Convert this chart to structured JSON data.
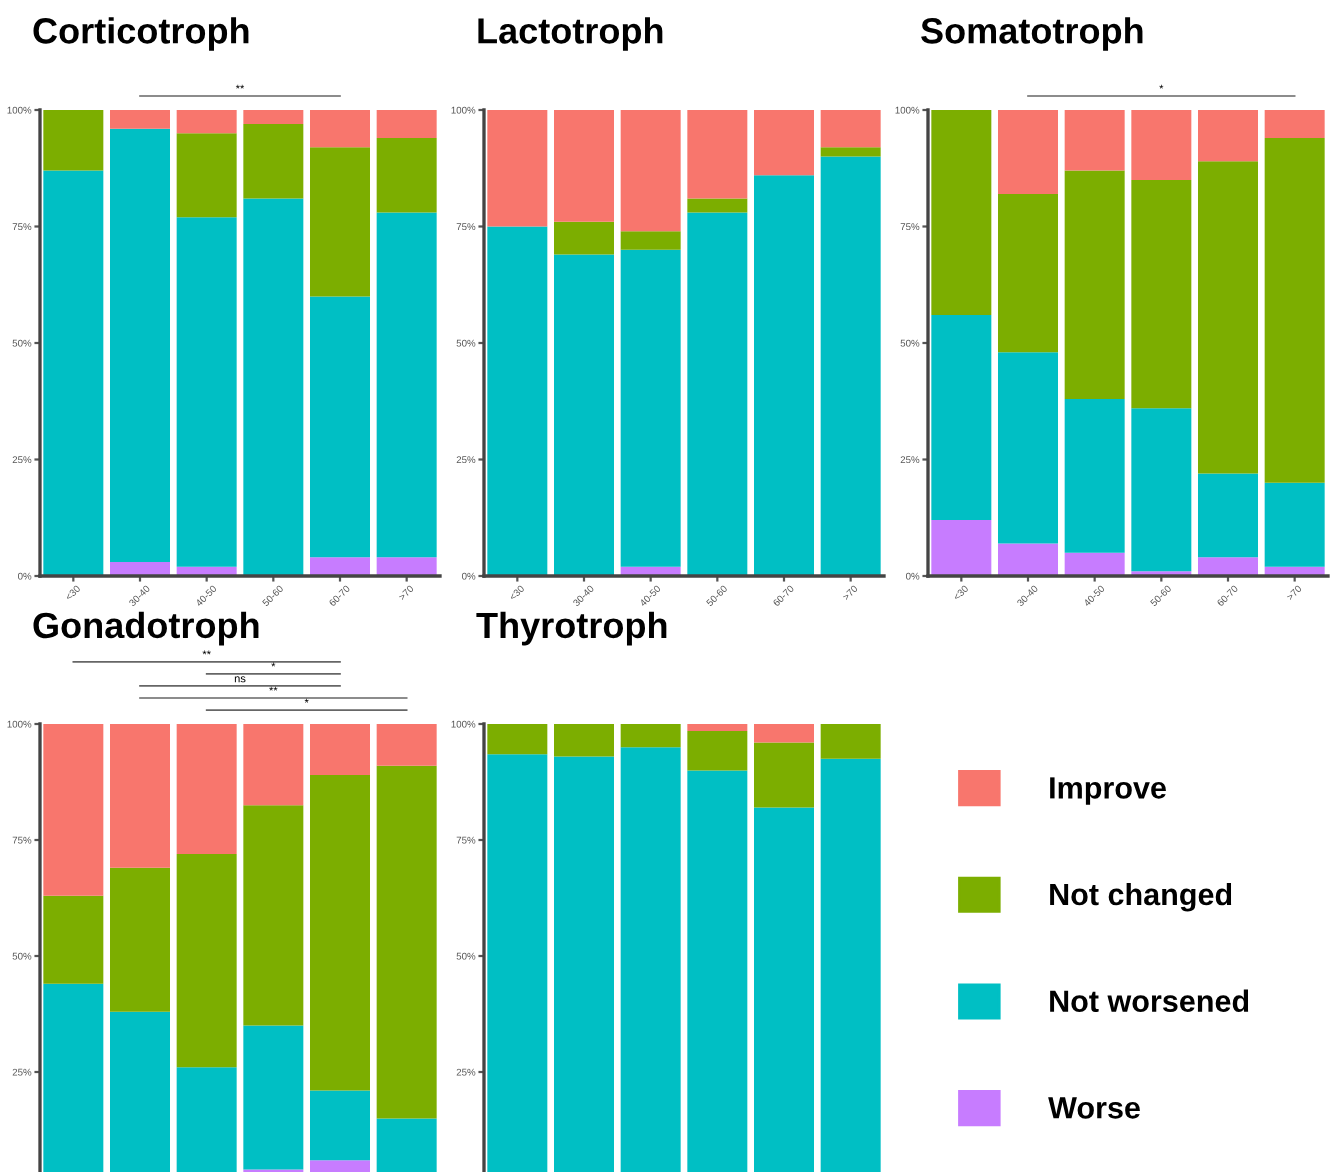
{
  "chart_data": [
    {
      "type": "bar",
      "stacked": true,
      "title": "Corticotroph",
      "categories": [
        "<30",
        "30-40",
        "40-50",
        "50-60",
        "60-70",
        ">70"
      ],
      "ylim": [
        0,
        100
      ],
      "yticks": [
        {
          "value": 0,
          "label": "0%"
        },
        {
          "value": 25,
          "label": "25%"
        },
        {
          "value": 50,
          "label": "50%"
        },
        {
          "value": 75,
          "label": "75%"
        },
        {
          "value": 100,
          "label": "100%"
        }
      ],
      "annotations": [
        "**"
      ],
      "legend": "bottom right",
      "series": [
        {
          "name": "Worse",
          "color": "#c77cff",
          "values": [
            0,
            3,
            2,
            0,
            4,
            4
          ]
        },
        {
          "name": "Not worsened",
          "color": "#00bfc4",
          "values": [
            87,
            93,
            75,
            81,
            56,
            74
          ]
        },
        {
          "name": "Not changed",
          "color": "#7cae00",
          "values": [
            13,
            0,
            18,
            16,
            32,
            16
          ]
        },
        {
          "name": "Improve",
          "color": "#f8766d",
          "values": [
            0,
            4,
            5,
            3,
            8,
            6
          ]
        }
      ]
    },
    {
      "type": "bar",
      "stacked": true,
      "title": "Lactotroph",
      "categories": [
        "<30",
        "30-40",
        "40-50",
        "50-60",
        "60-70",
        ">70"
      ],
      "ylim": [
        0,
        100
      ],
      "yticks": [
        {
          "value": 0,
          "label": "0%"
        },
        {
          "value": 25,
          "label": "25%"
        },
        {
          "value": 50,
          "label": "50%"
        },
        {
          "value": 75,
          "label": "75%"
        },
        {
          "value": 100,
          "label": "100%"
        }
      ],
      "series": [
        {
          "color": "#c77cff",
          "values": [
            0,
            0,
            2,
            0,
            0,
            0
          ]
        },
        {
          "color": "#00bfc4",
          "values": [
            75,
            69,
            68,
            78,
            86,
            90
          ]
        },
        {
          "color": "#7cae00",
          "values": [
            0,
            7,
            4,
            3,
            0,
            2
          ]
        },
        {
          "color": "#f8766d",
          "values": [
            25,
            24,
            26,
            19,
            14,
            8
          ]
        }
      ]
    },
    {
      "type": "bar",
      "stacked": true,
      "title": "Somatotroph",
      "categories": [
        "<30",
        "30-40",
        "40-50",
        "50-60",
        "60-70",
        ">70"
      ],
      "ylim": [
        0,
        100
      ],
      "yticks": [
        {
          "value": 0,
          "label": "0%"
        },
        {
          "value": 25,
          "label": "25%"
        },
        {
          "value": 50,
          "label": "50%"
        },
        {
          "value": 75,
          "label": "75%"
        },
        {
          "value": 100,
          "label": "100%"
        }
      ],
      "annotations": [
        "*"
      ],
      "series": [
        {
          "color": "#c77cff",
          "values": [
            12,
            7,
            5,
            1,
            4,
            2
          ]
        },
        {
          "color": "#00bfc4",
          "values": [
            44,
            41,
            33,
            35,
            18,
            18
          ]
        },
        {
          "color": "#7cae00",
          "values": [
            44,
            34,
            49,
            49,
            67,
            74
          ]
        },
        {
          "color": "#f8766d",
          "values": [
            0,
            18,
            13,
            15,
            11,
            6
          ]
        }
      ]
    },
    {
      "type": "bar",
      "stacked": true,
      "title": "Gonadotroph",
      "categories": [
        null,
        null,
        null,
        null,
        null,
        null
      ],
      "tick_labels": "y",
      "ylim": [
        0,
        100
      ],
      "yticks": [
        {
          "value": 0,
          "label": null
        },
        {
          "value": 25,
          "label": "25%"
        },
        {
          "value": 50,
          "label": "50%"
        },
        {
          "value": 75,
          "label": "75%"
        },
        {
          "value": 100,
          "label": "100%"
        }
      ],
      "annotations": [
        "**",
        "*",
        "ns",
        "**",
        "*"
      ],
      "series": [
        {
          "color": "#c77cff",
          "values": [
            0,
            0,
            0,
            4,
            6,
            0
          ]
        },
        {
          "color": "#00bfc4",
          "values": [
            44,
            38,
            26,
            31,
            15,
            15
          ]
        },
        {
          "color": "#7cae00",
          "values": [
            19,
            31,
            46,
            47.5,
            68,
            76
          ]
        },
        {
          "color": "#f8766d",
          "values": [
            37,
            31,
            28,
            17.5,
            11,
            9
          ]
        }
      ]
    },
    {
      "type": "bar",
      "stacked": true,
      "title": "Thyrotroph",
      "categories": [
        null,
        null,
        null,
        null,
        null,
        null
      ],
      "tick_labels": "y",
      "ylim": [
        0,
        100
      ],
      "yticks": [
        {
          "value": 0,
          "label": null
        },
        {
          "value": 25,
          "label": "25%"
        },
        {
          "value": 50,
          "label": "50%"
        },
        {
          "value": 75,
          "label": "75%"
        },
        {
          "value": 100,
          "label": "100%"
        }
      ],
      "series": [
        {
          "color": "#c77cff",
          "values": [
            0,
            0,
            0,
            0,
            0,
            0
          ]
        },
        {
          "color": "#00bfc4",
          "values": [
            93.5,
            93,
            95,
            90,
            82,
            92.5
          ]
        },
        {
          "color": "#7cae00",
          "values": [
            6.5,
            7,
            5,
            8.5,
            14,
            7.5
          ]
        },
        {
          "color": "#f8766d",
          "values": [
            0,
            0,
            0,
            1.5,
            4,
            0
          ]
        }
      ]
    }
  ]
}
